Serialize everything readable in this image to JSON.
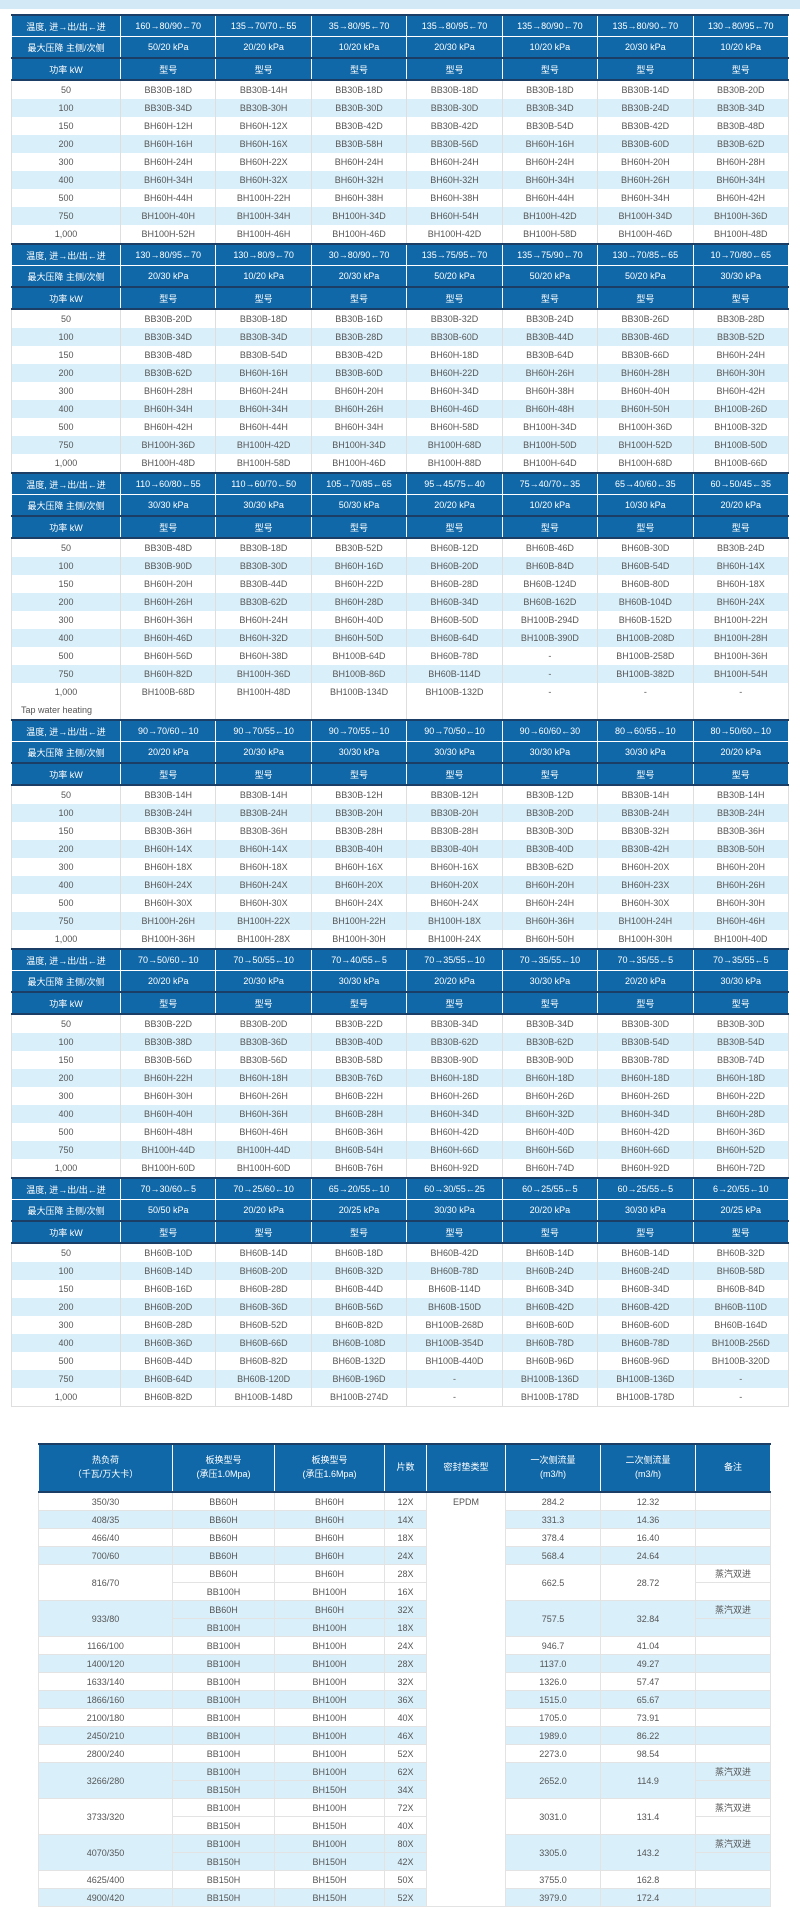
{
  "labels": {
    "temp_row": "温度, 进→出/出←进",
    "pressure_row": "最大压降 主侧/次侧",
    "power_row": "功率 kW",
    "model": "型号",
    "tap_water": "Tap water heating"
  },
  "colors": {
    "header_blue": "#1168a8",
    "dark_border": "#1b3e66",
    "stripe_blue": "#d9f0fb",
    "top_strip": "#d3e9f6"
  },
  "power_values": [
    "50",
    "100",
    "150",
    "200",
    "300",
    "400",
    "500",
    "750",
    "1,000"
  ],
  "sections": [
    {
      "temps": [
        "160→80/90←70",
        "135→70/70←55",
        "35→80/95←70",
        "135→80/95←70",
        "135→80/90←70",
        "135→80/90←70",
        "130→80/95←70"
      ],
      "pressures": [
        "50/20 kPa",
        "20/20 kPa",
        "10/20 kPa",
        "20/30 kPa",
        "10/20 kPa",
        "20/30 kPa",
        "10/20 kPa"
      ],
      "rows": [
        [
          "BB30B-18D",
          "BB30B-14H",
          "BB30B-18D",
          "BB30B-18D",
          "BB30B-18D",
          "BB30B-14D",
          "BB30B-20D"
        ],
        [
          "BB30B-34D",
          "BB30B-30H",
          "BB30B-30D",
          "BB30B-30D",
          "BB30B-34D",
          "BB30B-24D",
          "BB30B-34D"
        ],
        [
          "BH60H-12H",
          "BH60H-12X",
          "BB30B-42D",
          "BB30B-42D",
          "BB30B-54D",
          "BB30B-42D",
          "BB30B-48D"
        ],
        [
          "BH60H-16H",
          "BH60H-16X",
          "BB30B-58H",
          "BB30B-56D",
          "BH60H-16H",
          "BB30B-60D",
          "BB30B-62D"
        ],
        [
          "BH60H-24H",
          "BH60H-22X",
          "BH60H-24H",
          "BH60H-24H",
          "BH60H-24H",
          "BH60H-20H",
          "BH60H-28H"
        ],
        [
          "BH60H-34H",
          "BH60H-32X",
          "BH60H-32H",
          "BH60H-32H",
          "BH60H-34H",
          "BH60H-26H",
          "BH60H-34H"
        ],
        [
          "BH60H-44H",
          "BH100H-22H",
          "BH60H-38H",
          "BH60H-38H",
          "BH60H-44H",
          "BH60H-34H",
          "BH60H-42H"
        ],
        [
          "BH100H-40H",
          "BH100H-34H",
          "BH100H-34D",
          "BH60H-54H",
          "BH100H-42D",
          "BH100H-34D",
          "BH100H-36D"
        ],
        [
          "BH100H-52H",
          "BH100H-46H",
          "BH100H-46D",
          "BH100H-42D",
          "BH100H-58D",
          "BH100H-46D",
          "BH100H-48D"
        ]
      ]
    },
    {
      "temps": [
        "130→80/95←70",
        "130→80/9←70",
        "30→80/90←70",
        "135→75/95←70",
        "135→75/90←70",
        "130→70/85←65",
        "10→70/80←65"
      ],
      "pressures": [
        "20/30 kPa",
        "10/20 kPa",
        "20/30 kPa",
        "50/20 kPa",
        "50/20 kPa",
        "50/20 kPa",
        "30/30 kPa"
      ],
      "rows": [
        [
          "BB30B-20D",
          "BB30B-18D",
          "BB30B-16D",
          "BB30B-32D",
          "BB30B-24D",
          "BB30B-26D",
          "BB30B-28D"
        ],
        [
          "BB30B-34D",
          "BB30B-34D",
          "BB30B-28D",
          "BB30B-60D",
          "BB30B-44D",
          "BB30B-46D",
          "BB30B-52D"
        ],
        [
          "BB30B-48D",
          "BB30B-54D",
          "BB30B-42D",
          "BH60H-18D",
          "BB30B-64D",
          "BB30B-66D",
          "BH60H-24H"
        ],
        [
          "BB30B-62D",
          "BH60H-16H",
          "BB30B-60D",
          "BH60H-22D",
          "BH60H-26H",
          "BH60H-28H",
          "BH60H-30H"
        ],
        [
          "BH60H-28H",
          "BH60H-24H",
          "BH60H-20H",
          "BH60H-34D",
          "BH60H-38H",
          "BH60H-40H",
          "BH60H-42H"
        ],
        [
          "BH60H-34H",
          "BH60H-34H",
          "BH60H-26H",
          "BH60H-46D",
          "BH60H-48H",
          "BH60H-50H",
          "BH100B-26D"
        ],
        [
          "BH60H-42H",
          "BH60H-44H",
          "BH60H-34H",
          "BH60H-58D",
          "BH100H-34D",
          "BH100H-36D",
          "BH100B-32D"
        ],
        [
          "BH100H-36D",
          "BH100H-42D",
          "BH100H-34D",
          "BH100H-68D",
          "BH100H-50D",
          "BH100H-52D",
          "BH100B-50D"
        ],
        [
          "BH100H-48D",
          "BH100H-58D",
          "BH100H-46D",
          "BH100H-88D",
          "BH100H-64D",
          "BH100H-68D",
          "BH100B-66D"
        ]
      ]
    },
    {
      "temps": [
        "110→60/80←55",
        "110→60/70←50",
        "105→70/85←65",
        "95→45/75←40",
        "75→40/70←35",
        "65→40/60←35",
        "60→50/45←35"
      ],
      "pressures": [
        "30/30 kPa",
        "30/30 kPa",
        "50/30 kPa",
        "20/20 kPa",
        "10/20 kPa",
        "10/30 kPa",
        "20/20 kPa"
      ],
      "rows": [
        [
          "BB30B-48D",
          "BB30B-18D",
          "BB30B-52D",
          "BH60B-12D",
          "BH60B-46D",
          "BH60B-30D",
          "BB30B-24D"
        ],
        [
          "BB30B-90D",
          "BB30B-30D",
          "BH60H-16D",
          "BH60B-20D",
          "BH60B-84D",
          "BH60B-54D",
          "BH60H-14X"
        ],
        [
          "BH60H-20H",
          "BB30B-44D",
          "BH60H-22D",
          "BH60B-28D",
          "BH60B-124D",
          "BH60B-80D",
          "BH60H-18X"
        ],
        [
          "BH60H-26H",
          "BB30B-62D",
          "BH60H-28D",
          "BH60B-34D",
          "BH60B-162D",
          "BH60B-104D",
          "BH60H-24X"
        ],
        [
          "BH60H-36H",
          "BH60H-24H",
          "BH60H-40D",
          "BH60B-50D",
          "BH100B-294D",
          "BH60B-152D",
          "BH100H-22H"
        ],
        [
          "BH60H-46D",
          "BH60H-32D",
          "BH60H-50D",
          "BH60B-64D",
          "BH100B-390D",
          "BH100B-208D",
          "BH100H-28H"
        ],
        [
          "BH60H-56D",
          "BH60H-38D",
          "BH100B-64D",
          "BH60B-78D",
          "-",
          "BH100B-258D",
          "BH100H-36H"
        ],
        [
          "BH60H-82D",
          "BH100H-36D",
          "BH100B-86D",
          "BH60B-114D",
          "-",
          "BH100B-382D",
          "BH100H-54H"
        ],
        [
          "BH100B-68D",
          "BH100H-48D",
          "BH100B-134D",
          "BH100B-132D",
          "-",
          "-",
          "-"
        ]
      ]
    },
    {
      "temps": [
        "90→70/60←10",
        "90→70/55←10",
        "90→70/55←10",
        "90→70/50←10",
        "90→60/60←30",
        "80→60/55←10",
        "80→50/60←10"
      ],
      "pressures": [
        "20/20 kPa",
        "20/30 kPa",
        "30/30 kPa",
        "30/30 kPa",
        "30/30 kPa",
        "30/30 kPa",
        "20/20 kPa"
      ],
      "rows": [
        [
          "BB30B-14H",
          "BB30B-14H",
          "BB30B-12H",
          "BB30B-12H",
          "BB30B-12D",
          "BB30B-14H",
          "BB30B-14H"
        ],
        [
          "BB30B-24H",
          "BB30B-24H",
          "BB30B-20H",
          "BB30B-20H",
          "BB30B-20D",
          "BB30B-24H",
          "BB30B-24H"
        ],
        [
          "BB30B-36H",
          "BB30B-36H",
          "BB30B-28H",
          "BB30B-28H",
          "BB30B-30D",
          "BB30B-32H",
          "BB30B-36H"
        ],
        [
          "BH60H-14X",
          "BH60H-14X",
          "BB30B-40H",
          "BB30B-40H",
          "BB30B-40D",
          "BB30B-42H",
          "BB30B-50H"
        ],
        [
          "BH60H-18X",
          "BH60H-18X",
          "BH60H-16X",
          "BH60H-16X",
          "BB30B-62D",
          "BH60H-20X",
          "BH60H-20H"
        ],
        [
          "BH60H-24X",
          "BH60H-24X",
          "BH60H-20X",
          "BH60H-20X",
          "BH60H-20H",
          "BH60H-23X",
          "BH60H-26H"
        ],
        [
          "BH60H-30X",
          "BH60H-30X",
          "BH60H-24X",
          "BH60H-24X",
          "BH60H-24H",
          "BH60H-30X",
          "BH60H-30H"
        ],
        [
          "BH100H-26H",
          "BH100H-22X",
          "BH100H-22H",
          "BH100H-18X",
          "BH60H-36H",
          "BH100H-24H",
          "BH60H-46H"
        ],
        [
          "BH100H-36H",
          "BH100H-28X",
          "BH100H-30H",
          "BH100H-24X",
          "BH60H-50H",
          "BH100H-30H",
          "BH100H-40D"
        ]
      ]
    },
    {
      "temps": [
        "70→50/60←10",
        "70→50/55←10",
        "70→40/55←5",
        "70→35/55←10",
        "70→35/55←10",
        "70→35/55←5",
        "70→35/55←5"
      ],
      "pressures": [
        "20/20 kPa",
        "20/30 kPa",
        "30/30 kPa",
        "20/20 kPa",
        "30/30 kPa",
        "20/20 kPa",
        "30/30 kPa"
      ],
      "rows": [
        [
          "BB30B-22D",
          "BB30B-20D",
          "BB30B-22D",
          "BB30B-34D",
          "BB30B-34D",
          "BB30B-30D",
          "BB30B-30D"
        ],
        [
          "BB30B-38D",
          "BB30B-36D",
          "BB30B-40D",
          "BB30B-62D",
          "BB30B-62D",
          "BB30B-54D",
          "BB30B-54D"
        ],
        [
          "BB30B-56D",
          "BB30B-56D",
          "BB30B-58D",
          "BB30B-90D",
          "BB30B-90D",
          "BB30B-78D",
          "BB30B-74D"
        ],
        [
          "BH60H-22H",
          "BH60H-18H",
          "BB30B-76D",
          "BH60H-18D",
          "BH60H-18D",
          "BH60H-18D",
          "BH60H-18D"
        ],
        [
          "BH60H-30H",
          "BH60H-26H",
          "BH60B-22H",
          "BH60H-26D",
          "BH60H-26D",
          "BH60H-26D",
          "BH60H-22D"
        ],
        [
          "BH60H-40H",
          "BH60H-36H",
          "BH60B-28H",
          "BH60H-34D",
          "BH60H-32D",
          "BH60H-34D",
          "BH60H-28D"
        ],
        [
          "BH60H-48H",
          "BH60H-46H",
          "BH60B-36H",
          "BH60H-42D",
          "BH60H-40D",
          "BH60H-42D",
          "BH60H-36D"
        ],
        [
          "BH100H-44D",
          "BH100H-44D",
          "BH60B-54H",
          "BH60H-66D",
          "BH60H-56D",
          "BH60H-66D",
          "BH60H-52D"
        ],
        [
          "BH100H-60D",
          "BH100H-60D",
          "BH60B-76H",
          "BH60H-92D",
          "BH60H-74D",
          "BH60H-92D",
          "BH60H-72D"
        ]
      ]
    },
    {
      "temps": [
        "70→30/60←5",
        "70→25/60←10",
        "65→20/55←10",
        "60→30/55←25",
        "60→25/55←5",
        "60→25/55←5",
        "6→20/55←10"
      ],
      "pressures": [
        "50/50 kPa",
        "20/20 kPa",
        "20/25 kPa",
        "30/30 kPa",
        "20/20 kPa",
        "30/30 kPa",
        "20/25 kPa"
      ],
      "rows": [
        [
          "BH60B-10D",
          "BH60B-14D",
          "BH60B-18D",
          "BH60B-42D",
          "BH60B-14D",
          "BH60B-14D",
          "BH60B-32D"
        ],
        [
          "BH60B-14D",
          "BH60B-20D",
          "BH60B-32D",
          "BH60B-78D",
          "BH60B-24D",
          "BH60B-24D",
          "BH60B-58D"
        ],
        [
          "BH60B-16D",
          "BH60B-28D",
          "BH60B-44D",
          "BH60B-114D",
          "BH60B-34D",
          "BH60B-34D",
          "BH60B-84D"
        ],
        [
          "BH60B-20D",
          "BH60B-36D",
          "BH60B-56D",
          "BH60B-150D",
          "BH60B-42D",
          "BH60B-42D",
          "BH60B-110D"
        ],
        [
          "BH60B-28D",
          "BH60B-52D",
          "BH60B-82D",
          "BH100B-268D",
          "BH60B-60D",
          "BH60B-60D",
          "BH60B-164D"
        ],
        [
          "BH60B-36D",
          "BH60B-66D",
          "BH60B-108D",
          "BH100B-354D",
          "BH60B-78D",
          "BH60B-78D",
          "BH100B-256D"
        ],
        [
          "BH60B-44D",
          "BH60B-82D",
          "BH60B-132D",
          "BH100B-440D",
          "BH60B-96D",
          "BH60B-96D",
          "BH100B-320D"
        ],
        [
          "BH60B-64D",
          "BH60B-120D",
          "BH60B-196D",
          "-",
          "BH100B-136D",
          "BH100B-136D",
          "-"
        ],
        [
          "BH60B-82D",
          "BH100B-148D",
          "BH100B-274D",
          "-",
          "BH100B-178D",
          "BH100B-178D",
          "-"
        ]
      ]
    }
  ],
  "steam_table": {
    "headers": {
      "load_l1": "热负荷",
      "load_l2": "（千瓦/万大卡）",
      "model10_l1": "板换型号",
      "model10_l2": "(承压1.0Mpa)",
      "model16_l1": "板换型号",
      "model16_l2": "(承压1.6Mpa)",
      "sheets": "片数",
      "seal": "密封垫类型",
      "flow1_l1": "一次侧流量",
      "flow1_l2": "(m3/h)",
      "flow2_l1": "二次侧流量",
      "flow2_l2": "(m3/h)",
      "note": "备注"
    },
    "seal_type": "EPDM",
    "rows": [
      {
        "load": "350/30",
        "m10": [
          "BB60H"
        ],
        "m16": [
          "BH60H"
        ],
        "sheets": [
          "12X"
        ],
        "flow1": "284.2",
        "flow2": "12.32",
        "note": ""
      },
      {
        "load": "408/35",
        "m10": [
          "BB60H"
        ],
        "m16": [
          "BH60H"
        ],
        "sheets": [
          "14X"
        ],
        "flow1": "331.3",
        "flow2": "14.36",
        "note": ""
      },
      {
        "load": "466/40",
        "m10": [
          "BB60H"
        ],
        "m16": [
          "BH60H"
        ],
        "sheets": [
          "18X"
        ],
        "flow1": "378.4",
        "flow2": "16.40",
        "note": ""
      },
      {
        "load": "700/60",
        "m10": [
          "BB60H"
        ],
        "m16": [
          "BH60H"
        ],
        "sheets": [
          "24X"
        ],
        "flow1": "568.4",
        "flow2": "24.64",
        "note": ""
      },
      {
        "load": "816/70",
        "m10": [
          "BB60H",
          "BB100H"
        ],
        "m16": [
          "BH60H",
          "BH100H"
        ],
        "sheets": [
          "28X",
          "16X"
        ],
        "flow1": "662.5",
        "flow2": "28.72",
        "note": "蒸汽双进"
      },
      {
        "load": "933/80",
        "m10": [
          "BB60H",
          "BB100H"
        ],
        "m16": [
          "BH60H",
          "BH100H"
        ],
        "sheets": [
          "32X",
          "18X"
        ],
        "flow1": "757.5",
        "flow2": "32.84",
        "note": "蒸汽双进"
      },
      {
        "load": "1166/100",
        "m10": [
          "BB100H"
        ],
        "m16": [
          "BH100H"
        ],
        "sheets": [
          "24X"
        ],
        "flow1": "946.7",
        "flow2": "41.04",
        "note": ""
      },
      {
        "load": "1400/120",
        "m10": [
          "BB100H"
        ],
        "m16": [
          "BH100H"
        ],
        "sheets": [
          "28X"
        ],
        "flow1": "1137.0",
        "flow2": "49.27",
        "note": ""
      },
      {
        "load": "1633/140",
        "m10": [
          "BB100H"
        ],
        "m16": [
          "BH100H"
        ],
        "sheets": [
          "32X"
        ],
        "flow1": "1326.0",
        "flow2": "57.47",
        "note": ""
      },
      {
        "load": "1866/160",
        "m10": [
          "BB100H"
        ],
        "m16": [
          "BH100H"
        ],
        "sheets": [
          "36X"
        ],
        "flow1": "1515.0",
        "flow2": "65.67",
        "note": ""
      },
      {
        "load": "2100/180",
        "m10": [
          "BB100H"
        ],
        "m16": [
          "BH100H"
        ],
        "sheets": [
          "40X"
        ],
        "flow1": "1705.0",
        "flow2": "73.91",
        "note": ""
      },
      {
        "load": "2450/210",
        "m10": [
          "BB100H"
        ],
        "m16": [
          "BH100H"
        ],
        "sheets": [
          "46X"
        ],
        "flow1": "1989.0",
        "flow2": "86.22",
        "note": ""
      },
      {
        "load": "2800/240",
        "m10": [
          "BB100H"
        ],
        "m16": [
          "BH100H"
        ],
        "sheets": [
          "52X"
        ],
        "flow1": "2273.0",
        "flow2": "98.54",
        "note": ""
      },
      {
        "load": "3266/280",
        "m10": [
          "BB100H",
          "BB150H"
        ],
        "m16": [
          "BH100H",
          "BH150H"
        ],
        "sheets": [
          "62X",
          "34X"
        ],
        "flow1": "2652.0",
        "flow2": "114.9",
        "note": "蒸汽双进"
      },
      {
        "load": "3733/320",
        "m10": [
          "BB100H",
          "BB150H"
        ],
        "m16": [
          "BH100H",
          "BH150H"
        ],
        "sheets": [
          "72X",
          "40X"
        ],
        "flow1": "3031.0",
        "flow2": "131.4",
        "note": "蒸汽双进"
      },
      {
        "load": "4070/350",
        "m10": [
          "BB100H",
          "BB150H"
        ],
        "m16": [
          "BH100H",
          "BH150H"
        ],
        "sheets": [
          "80X",
          "42X"
        ],
        "flow1": "3305.0",
        "flow2": "143.2",
        "note": "蒸汽双进"
      },
      {
        "load": "4625/400",
        "m10": [
          "BB150H"
        ],
        "m16": [
          "BH150H"
        ],
        "sheets": [
          "50X"
        ],
        "flow1": "3755.0",
        "flow2": "162.8",
        "note": ""
      },
      {
        "load": "4900/420",
        "m10": [
          "BB150H"
        ],
        "m16": [
          "BH150H"
        ],
        "sheets": [
          "52X"
        ],
        "flow1": "3979.0",
        "flow2": "172.4",
        "note": ""
      }
    ]
  }
}
